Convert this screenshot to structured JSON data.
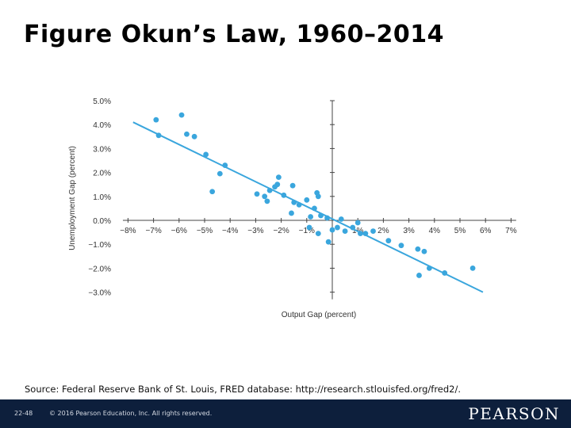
{
  "slide": {
    "title": "Figure Okun’s Law, 1960–2014",
    "source": "Source: Federal Reserve Bank of St. Louis, FRED database: http://research.stlouisfed.org/fred2/.",
    "slide_number": "22-48",
    "copyright": "© 2016 Pearson Education, Inc. All rights reserved.",
    "logo_text": "PEARSON"
  },
  "colors": {
    "accent": "#3aa6dd",
    "footer": "#0d1f3c"
  },
  "chart_data": {
    "type": "scatter",
    "xlabel": "Output Gap (percent)",
    "ylabel": "Unemployment Gap (percent)",
    "xlim": [
      -8.2,
      7.2
    ],
    "ylim": [
      -3.3,
      5.0
    ],
    "x_tick_labels": [
      "−8%",
      "−7%",
      "−6%",
      "−5%",
      "−4%",
      "−3%",
      "−2%",
      "−1%",
      "1%",
      "2%",
      "3%",
      "4%",
      "5%",
      "6%",
      "7%"
    ],
    "x_tick_values": [
      -8,
      -7,
      -6,
      -5,
      -4,
      -3,
      -2,
      -1,
      1,
      2,
      3,
      4,
      5,
      6,
      7
    ],
    "y_tick_labels": [
      "5.0%",
      "4.0%",
      "3.0%",
      "2.0%",
      "1.0%",
      "0.0%",
      "−1.0%",
      "−2.0%",
      "−3.0%"
    ],
    "y_tick_values": [
      5,
      4,
      3,
      2,
      1,
      0,
      -1,
      -2,
      -3
    ],
    "grid": false,
    "fit_line": {
      "x": [
        -7.8,
        5.9
      ],
      "y": [
        4.1,
        -3.0
      ]
    },
    "points": [
      {
        "x": -6.9,
        "y": 4.2
      },
      {
        "x": -6.8,
        "y": 3.55
      },
      {
        "x": -5.9,
        "y": 4.4
      },
      {
        "x": -5.7,
        "y": 3.6
      },
      {
        "x": -5.4,
        "y": 3.5
      },
      {
        "x": -4.95,
        "y": 2.75
      },
      {
        "x": -4.4,
        "y": 1.95
      },
      {
        "x": -4.2,
        "y": 2.3
      },
      {
        "x": -4.7,
        "y": 1.2
      },
      {
        "x": -2.95,
        "y": 1.1
      },
      {
        "x": -2.65,
        "y": 1.0
      },
      {
        "x": -2.55,
        "y": 0.8
      },
      {
        "x": -2.45,
        "y": 1.25
      },
      {
        "x": -2.25,
        "y": 1.4
      },
      {
        "x": -2.15,
        "y": 1.5
      },
      {
        "x": -2.1,
        "y": 1.8
      },
      {
        "x": -1.9,
        "y": 1.05
      },
      {
        "x": -1.55,
        "y": 1.45
      },
      {
        "x": -1.5,
        "y": 0.75
      },
      {
        "x": -1.6,
        "y": 0.3
      },
      {
        "x": -1.3,
        "y": 0.65
      },
      {
        "x": -1.0,
        "y": 0.85
      },
      {
        "x": -0.85,
        "y": 0.15
      },
      {
        "x": -0.7,
        "y": 0.5
      },
      {
        "x": -0.6,
        "y": 1.15
      },
      {
        "x": -0.55,
        "y": 1.0
      },
      {
        "x": -0.45,
        "y": 0.2
      },
      {
        "x": -0.2,
        "y": 0.1
      },
      {
        "x": -0.55,
        "y": -0.55
      },
      {
        "x": -0.9,
        "y": -0.3
      },
      {
        "x": -0.15,
        "y": -0.9
      },
      {
        "x": 0.0,
        "y": -0.4
      },
      {
        "x": 0.2,
        "y": -0.3
      },
      {
        "x": 0.35,
        "y": 0.05
      },
      {
        "x": 0.5,
        "y": -0.45
      },
      {
        "x": 0.8,
        "y": -0.3
      },
      {
        "x": 1.0,
        "y": -0.1
      },
      {
        "x": 1.1,
        "y": -0.55
      },
      {
        "x": 1.3,
        "y": -0.55
      },
      {
        "x": 1.6,
        "y": -0.45
      },
      {
        "x": 2.2,
        "y": -0.85
      },
      {
        "x": 2.7,
        "y": -1.05
      },
      {
        "x": 3.35,
        "y": -1.2
      },
      {
        "x": 3.6,
        "y": -1.3
      },
      {
        "x": 3.4,
        "y": -2.3
      },
      {
        "x": 3.8,
        "y": -2.0
      },
      {
        "x": 4.4,
        "y": -2.2
      },
      {
        "x": 5.5,
        "y": -2.0
      }
    ]
  }
}
